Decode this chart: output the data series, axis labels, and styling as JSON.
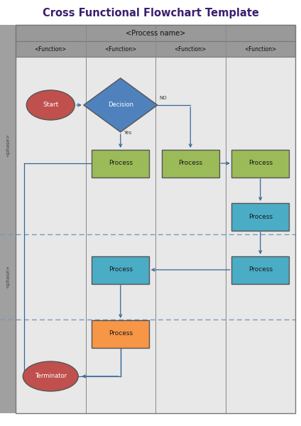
{
  "title": "Cross Functional Flowchart Template",
  "title_color": "#3B1F6E",
  "title_fontsize": 10.5,
  "process_name": "<Process name>",
  "functions": [
    "<Function>",
    "<Function>",
    "<Function>",
    "<Function>"
  ],
  "phase1_label": "<phase>",
  "phase2_label": "<phase>",
  "bg_color": "#ffffff",
  "header_bg": "#999999",
  "label_col_bg": "#a0a0a0",
  "lane_bg": "#e8e8e8",
  "dashed_line_color": "#7799bb",
  "arrow_color": "#336699",
  "col_line_color": "#888888",
  "start_color": "#c0504d",
  "decision_color": "#4f81bd",
  "green_color": "#9bbb59",
  "teal_color": "#4bacc6",
  "orange_color": "#f79646",
  "term_color": "#c0504d"
}
